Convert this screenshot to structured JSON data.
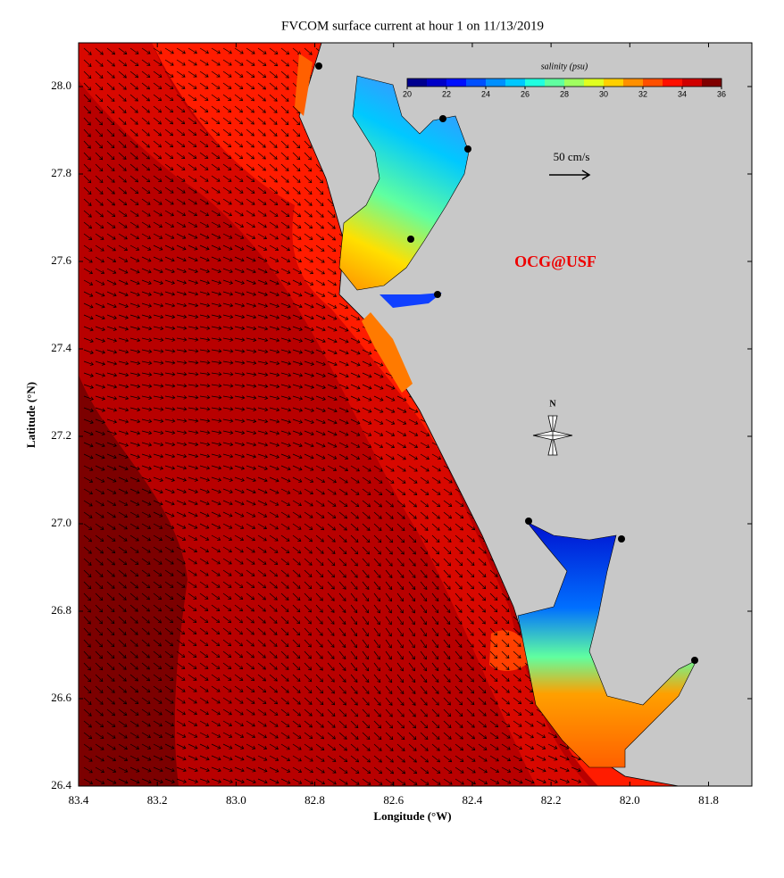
{
  "chart_data": {
    "type": "map",
    "title": "FVCOM surface current at hour 1 on 11/13/2019",
    "x_label": "Longitude (°W)",
    "y_label": "Latitude (°N)",
    "xlim": [
      83.4,
      81.69
    ],
    "ylim": [
      26.4,
      28.1
    ],
    "xticks": [
      83.4,
      83.2,
      {
        "value": 83,
        "label": "83.0"
      },
      82.8,
      82.6,
      82.4,
      82.2,
      {
        "value": 82,
        "label": "82.0"
      },
      81.8
    ],
    "yticks": [
      26.4,
      26.6,
      26.8,
      {
        "value": 27,
        "label": "27.0"
      },
      27.2,
      27.4,
      27.6,
      27.8,
      {
        "value": 28,
        "label": "28.0"
      }
    ],
    "colorbar": {
      "label": "salinity (psu)",
      "clim": [
        20,
        36
      ],
      "ticks": [
        20,
        22,
        24,
        26,
        28,
        30,
        32,
        34,
        36
      ],
      "colors": [
        "#00008f",
        "#0000c8",
        "#0010ff",
        "#0050ff",
        "#0090ff",
        "#00c8ff",
        "#20ffe0",
        "#60ffa0",
        "#a0ff60",
        "#e0ff20",
        "#ffd000",
        "#ff9000",
        "#ff5000",
        "#ff1000",
        "#d00000",
        "#800000"
      ]
    },
    "scale_label": "50 cm/s",
    "watermark": "OCG@USF",
    "compass_label": "N"
  }
}
